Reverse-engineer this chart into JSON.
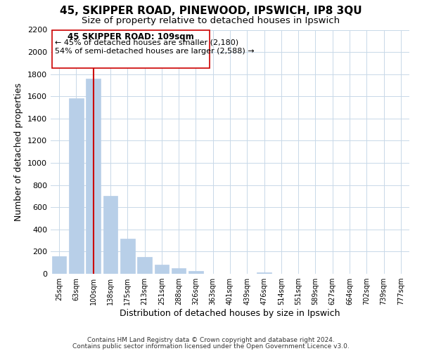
{
  "title": "45, SKIPPER ROAD, PINEWOOD, IPSWICH, IP8 3QU",
  "subtitle": "Size of property relative to detached houses in Ipswich",
  "xlabel": "Distribution of detached houses by size in Ipswich",
  "ylabel": "Number of detached properties",
  "bar_labels": [
    "25sqm",
    "63sqm",
    "100sqm",
    "138sqm",
    "175sqm",
    "213sqm",
    "251sqm",
    "288sqm",
    "326sqm",
    "363sqm",
    "401sqm",
    "439sqm",
    "476sqm",
    "514sqm",
    "551sqm",
    "589sqm",
    "627sqm",
    "664sqm",
    "702sqm",
    "739sqm",
    "777sqm"
  ],
  "bar_values": [
    160,
    1580,
    1760,
    700,
    315,
    155,
    85,
    50,
    25,
    0,
    0,
    0,
    15,
    0,
    0,
    0,
    0,
    0,
    0,
    0,
    0
  ],
  "bar_color": "#b8cfe8",
  "vline_x": 2,
  "vline_color": "#cc0000",
  "annotation_title": "45 SKIPPER ROAD: 109sqm",
  "annotation_line1": "← 45% of detached houses are smaller (2,180)",
  "annotation_line2": "54% of semi-detached houses are larger (2,588) →",
  "ylim": [
    0,
    2200
  ],
  "yticks": [
    0,
    200,
    400,
    600,
    800,
    1000,
    1200,
    1400,
    1600,
    1800,
    2000,
    2200
  ],
  "footer1": "Contains HM Land Registry data © Crown copyright and database right 2024.",
  "footer2": "Contains public sector information licensed under the Open Government Licence v3.0.",
  "background_color": "#ffffff",
  "grid_color": "#c8d8e8"
}
